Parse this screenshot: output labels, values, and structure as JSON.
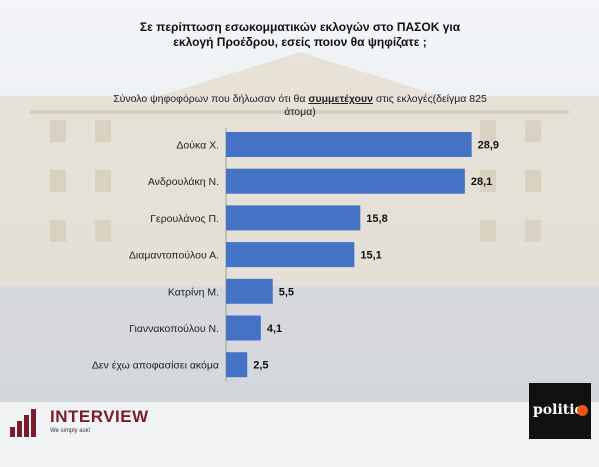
{
  "header": {
    "title": "Σε περίπτωση εσωκομματικών εκλογών στο ΠΑΣΟΚ για\nεκλογή Προέδρου, εσείς ποιον θα ψηφίζατε ;",
    "subtitle_pre": "Σύνολο ψηφοφόρων που δήλωσαν ότι θα ",
    "subtitle_emph": "συμμετέχουν",
    "subtitle_post": " στις εκλογές(δείγμα 825 άτομα)"
  },
  "chart_data": {
    "type": "bar",
    "orientation": "horizontal",
    "categories": [
      "Δούκα Χ.",
      "Ανδρουλάκη Ν.",
      "Γερουλάνος Π.",
      "Διαμαντοπούλου Α.",
      "Κατρίνη Μ.",
      "Γιαννακοπούλου Ν.",
      "Δεν έχω αποφασίσει ακόμα"
    ],
    "values": [
      28.9,
      28.1,
      15.8,
      15.1,
      5.5,
      4.1,
      2.5
    ],
    "value_labels": [
      "28,9",
      "28,1",
      "15,8",
      "15,1",
      "5,5",
      "4,1",
      "2,5"
    ],
    "bar_color": "#4472c4",
    "xlim": [
      0,
      30
    ],
    "grid": false,
    "legend": "none"
  },
  "branding": {
    "left_name": "INTERVIEW",
    "left_tagline": "We simply ask!",
    "left_color": "#7b1c2c",
    "right_name": "politic",
    "right_accent": "#e8561a"
  }
}
